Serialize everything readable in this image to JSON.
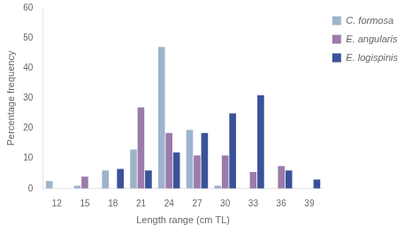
{
  "chart_data": {
    "type": "bar",
    "categories": [
      12,
      15,
      18,
      21,
      24,
      27,
      30,
      33,
      36,
      39
    ],
    "series": [
      {
        "name": "C. formosa",
        "color": "#9db3cc",
        "values": [
          2.5,
          1.0,
          6.0,
          13.0,
          47.0,
          19.5,
          1.0,
          0.0,
          0.0,
          0.0
        ]
      },
      {
        "name": "E. angularis",
        "color": "#9b7baa",
        "values": [
          0.0,
          4.0,
          0.0,
          27.0,
          18.5,
          11.0,
          11.0,
          5.5,
          7.5,
          0.0
        ]
      },
      {
        "name": "E. logispinis",
        "color": "#3a5298",
        "values": [
          0.0,
          0.0,
          6.5,
          6.0,
          12.0,
          18.5,
          25.0,
          31.0,
          6.0,
          3.0
        ]
      }
    ],
    "xlabel": "Length range (cm TL)",
    "ylabel": "Percentage frequency",
    "ylim": [
      0,
      60
    ],
    "yticks": [
      0,
      10,
      20,
      30,
      40,
      50,
      60
    ],
    "grid": false,
    "legend": "right"
  }
}
